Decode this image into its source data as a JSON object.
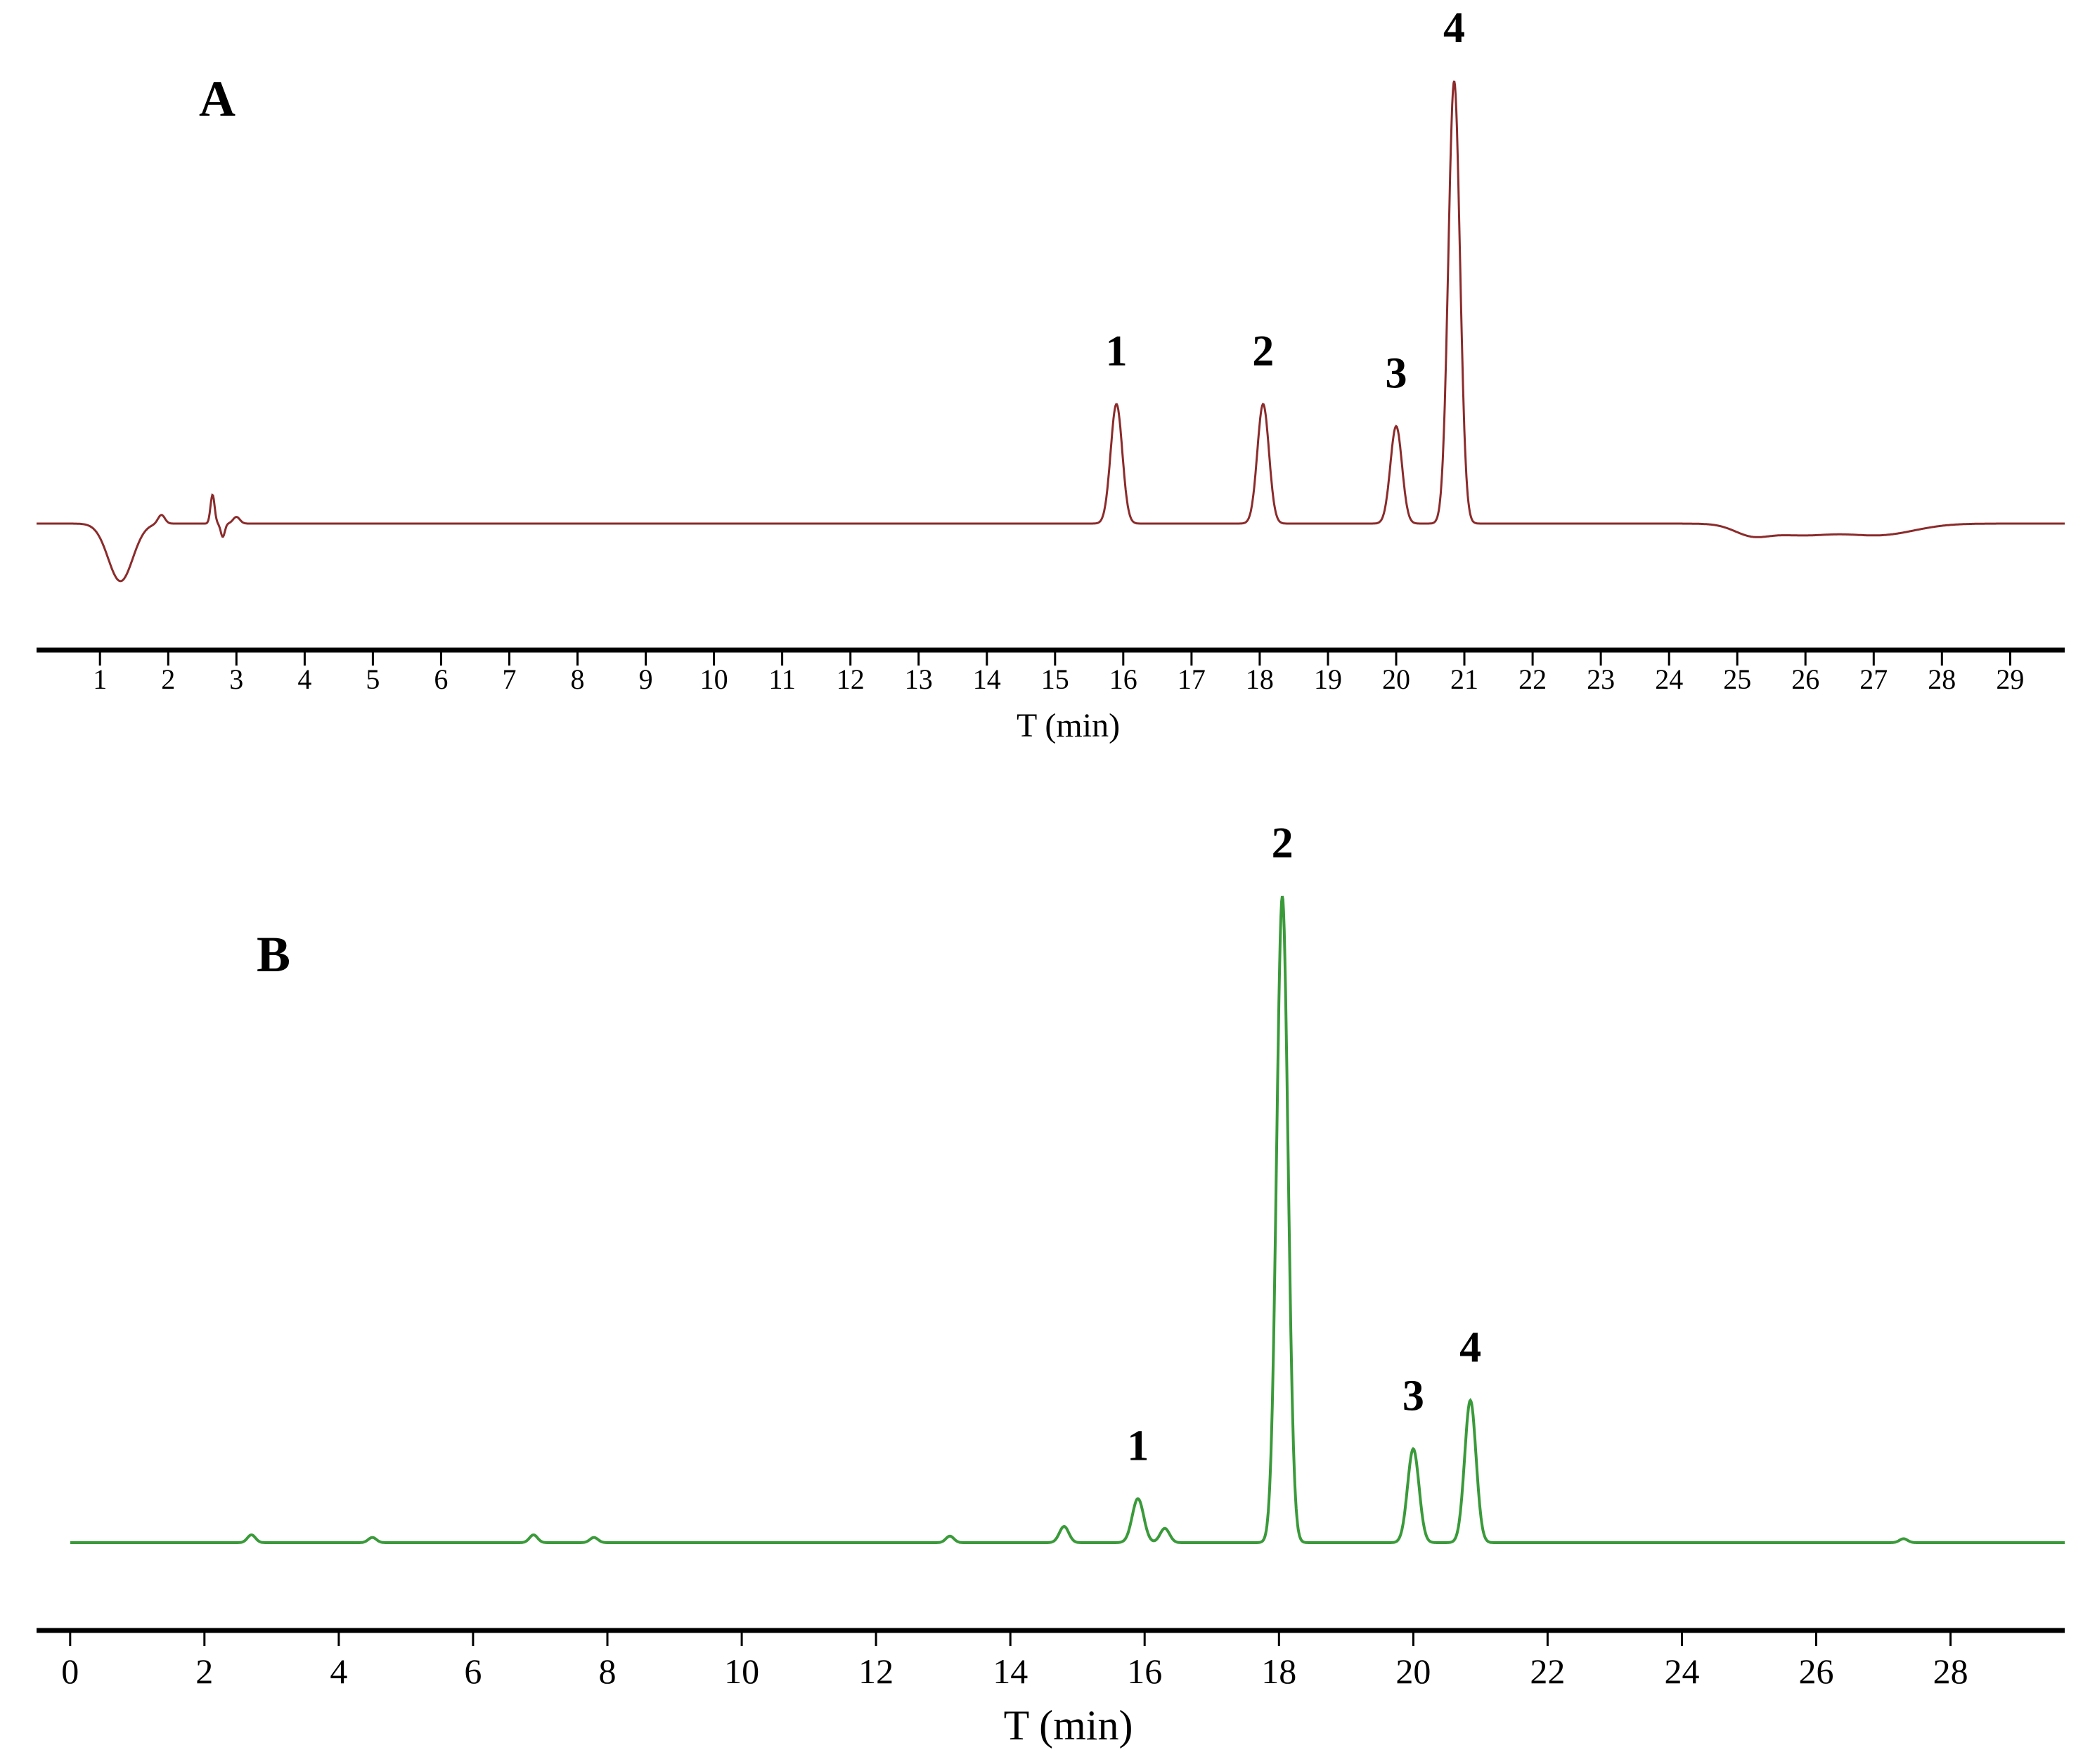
{
  "chart_data": [
    {
      "type": "line",
      "panel": "A",
      "xlabel": "T (min)",
      "ylabel": "",
      "x_ticks": [
        "1",
        "2",
        "3",
        "4",
        "5",
        "6",
        "7",
        "8",
        "9",
        "10",
        "11",
        "12",
        "13",
        "14",
        "15",
        "16",
        "17",
        "18",
        "19",
        "20",
        "21",
        "22",
        "23",
        "24",
        "25",
        "26",
        "27",
        "28",
        "29"
      ],
      "xlim": [
        0.07,
        29.8
      ],
      "y_axis_shown": false,
      "grid": false,
      "color": "#8b2b2b",
      "baseline": 0,
      "features": [
        {
          "t": 1.3,
          "h": -0.13,
          "w": 0.18
        },
        {
          "t": 1.9,
          "h": 0.02,
          "w": 0.05
        },
        {
          "t": 2.65,
          "h": 0.065,
          "w": 0.03
        },
        {
          "t": 2.8,
          "h": -0.03,
          "w": 0.03
        },
        {
          "t": 3.0,
          "h": 0.015,
          "w": 0.05
        },
        {
          "t": 25.2,
          "h": -0.02,
          "w": 0.25
        },
        {
          "t": 25.9,
          "h": -0.025,
          "w": 0.5
        },
        {
          "t": 27.1,
          "h": -0.025,
          "w": 0.5
        }
      ],
      "peaks": [
        {
          "label": "1",
          "t": 15.9,
          "height": 0.27
        },
        {
          "label": "2",
          "t": 18.05,
          "height": 0.27
        },
        {
          "label": "3",
          "t": 20.0,
          "height": 0.22
        },
        {
          "label": "4",
          "t": 20.85,
          "height": 1.0
        }
      ]
    },
    {
      "type": "line",
      "panel": "B",
      "xlabel": "T (min)",
      "ylabel": "",
      "x_ticks": [
        0,
        2,
        4,
        6,
        8,
        10,
        12,
        14,
        16,
        18,
        20,
        22,
        24,
        26,
        28
      ],
      "xlim": [
        -0.5,
        29.7
      ],
      "y_axis_shown": false,
      "grid": false,
      "color": "#3a9a3a",
      "baseline": 0,
      "features": [
        {
          "t": 2.7,
          "h": 0.012,
          "w": 0.06
        },
        {
          "t": 4.5,
          "h": 0.008,
          "w": 0.06
        },
        {
          "t": 6.9,
          "h": 0.012,
          "w": 0.06
        },
        {
          "t": 7.8,
          "h": 0.008,
          "w": 0.06
        },
        {
          "t": 13.1,
          "h": 0.01,
          "w": 0.06
        },
        {
          "t": 14.8,
          "h": 0.025,
          "w": 0.07
        },
        {
          "t": 16.3,
          "h": 0.022,
          "w": 0.07
        },
        {
          "t": 27.3,
          "h": 0.006,
          "w": 0.06
        }
      ],
      "peaks": [
        {
          "label": "1",
          "t": 15.9,
          "height": 0.068
        },
        {
          "label": "2",
          "t": 18.05,
          "height": 1.0
        },
        {
          "label": "3",
          "t": 20.0,
          "height": 0.145
        },
        {
          "label": "4",
          "t": 20.85,
          "height": 0.22
        }
      ]
    }
  ]
}
